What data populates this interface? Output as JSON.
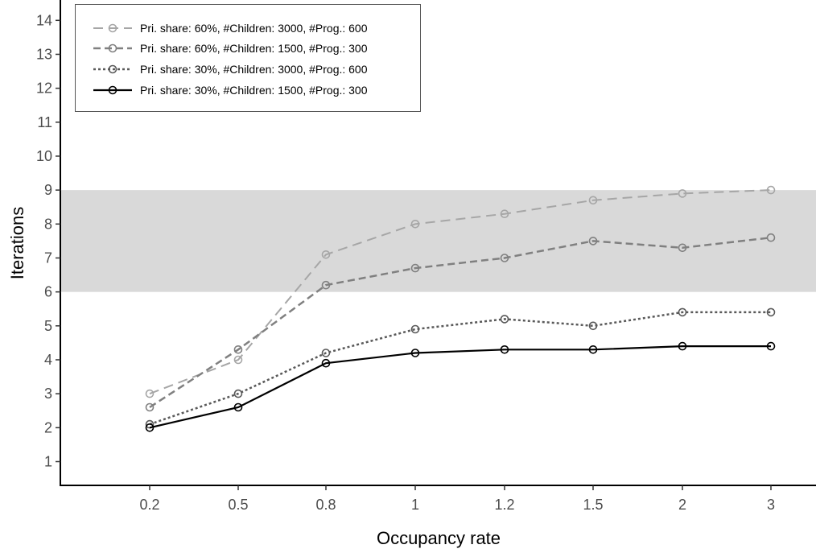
{
  "chart_data": {
    "type": "line",
    "xlabel": "Occupancy rate",
    "ylabel": "Iterations",
    "categories": [
      "0.2",
      "0.5",
      "0.8",
      "1",
      "1.2",
      "1.5",
      "2",
      "3"
    ],
    "y_ticks": [
      "1",
      "2",
      "3",
      "4",
      "5",
      "6",
      "7",
      "8",
      "9",
      "10",
      "11",
      "12",
      "13",
      "14"
    ],
    "ylim": [
      0.3,
      14.6
    ],
    "grid": false,
    "legend_position": "top-left",
    "highlight_band": {
      "y_from": 6,
      "y_to": 9,
      "color": "#d9d9d9"
    },
    "series": [
      {
        "name": "Pri. share: 60%, #Children: 3000, #Prog.: 600",
        "color": "#a6a6a6",
        "dash": "long",
        "values": [
          3.0,
          4.0,
          7.1,
          8.0,
          8.3,
          8.7,
          8.9,
          9.0
        ]
      },
      {
        "name": "Pri. share: 60%, #Children: 1500, #Prog.: 300",
        "color": "#808080",
        "dash": "medium",
        "values": [
          2.6,
          4.3,
          6.2,
          6.7,
          7.0,
          7.5,
          7.3,
          7.6
        ]
      },
      {
        "name": "Pri. share: 30%, #Children: 3000, #Prog.: 600",
        "color": "#595959",
        "dash": "dotted",
        "values": [
          2.1,
          3.0,
          4.2,
          4.9,
          5.2,
          5.0,
          5.4,
          5.4
        ]
      },
      {
        "name": "Pri. share: 30%, #Children: 1500, #Prog.: 300",
        "color": "#000000",
        "dash": "solid",
        "values": [
          2.0,
          2.6,
          3.9,
          4.2,
          4.3,
          4.3,
          4.4,
          4.4
        ]
      }
    ]
  }
}
